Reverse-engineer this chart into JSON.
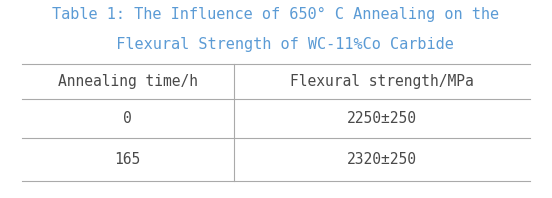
{
  "title_line1": "Table 1: The Influence of 650° C Annealing on the",
  "title_line2": "  Flexural Strength of WC-11%Co Carbide",
  "col_headers": [
    "Annealing time/h",
    "Flexural strength/MPa"
  ],
  "rows": [
    [
      "0",
      "2250±250"
    ],
    [
      "165",
      "2320±250"
    ]
  ],
  "title_color": "#5b9bd5",
  "text_color": "#4a4a4a",
  "line_color": "#aaaaaa",
  "bg_color": "#ffffff",
  "title_fontsize": 11,
  "header_fontsize": 10.5,
  "cell_fontsize": 10.5,
  "font_family": "monospace"
}
